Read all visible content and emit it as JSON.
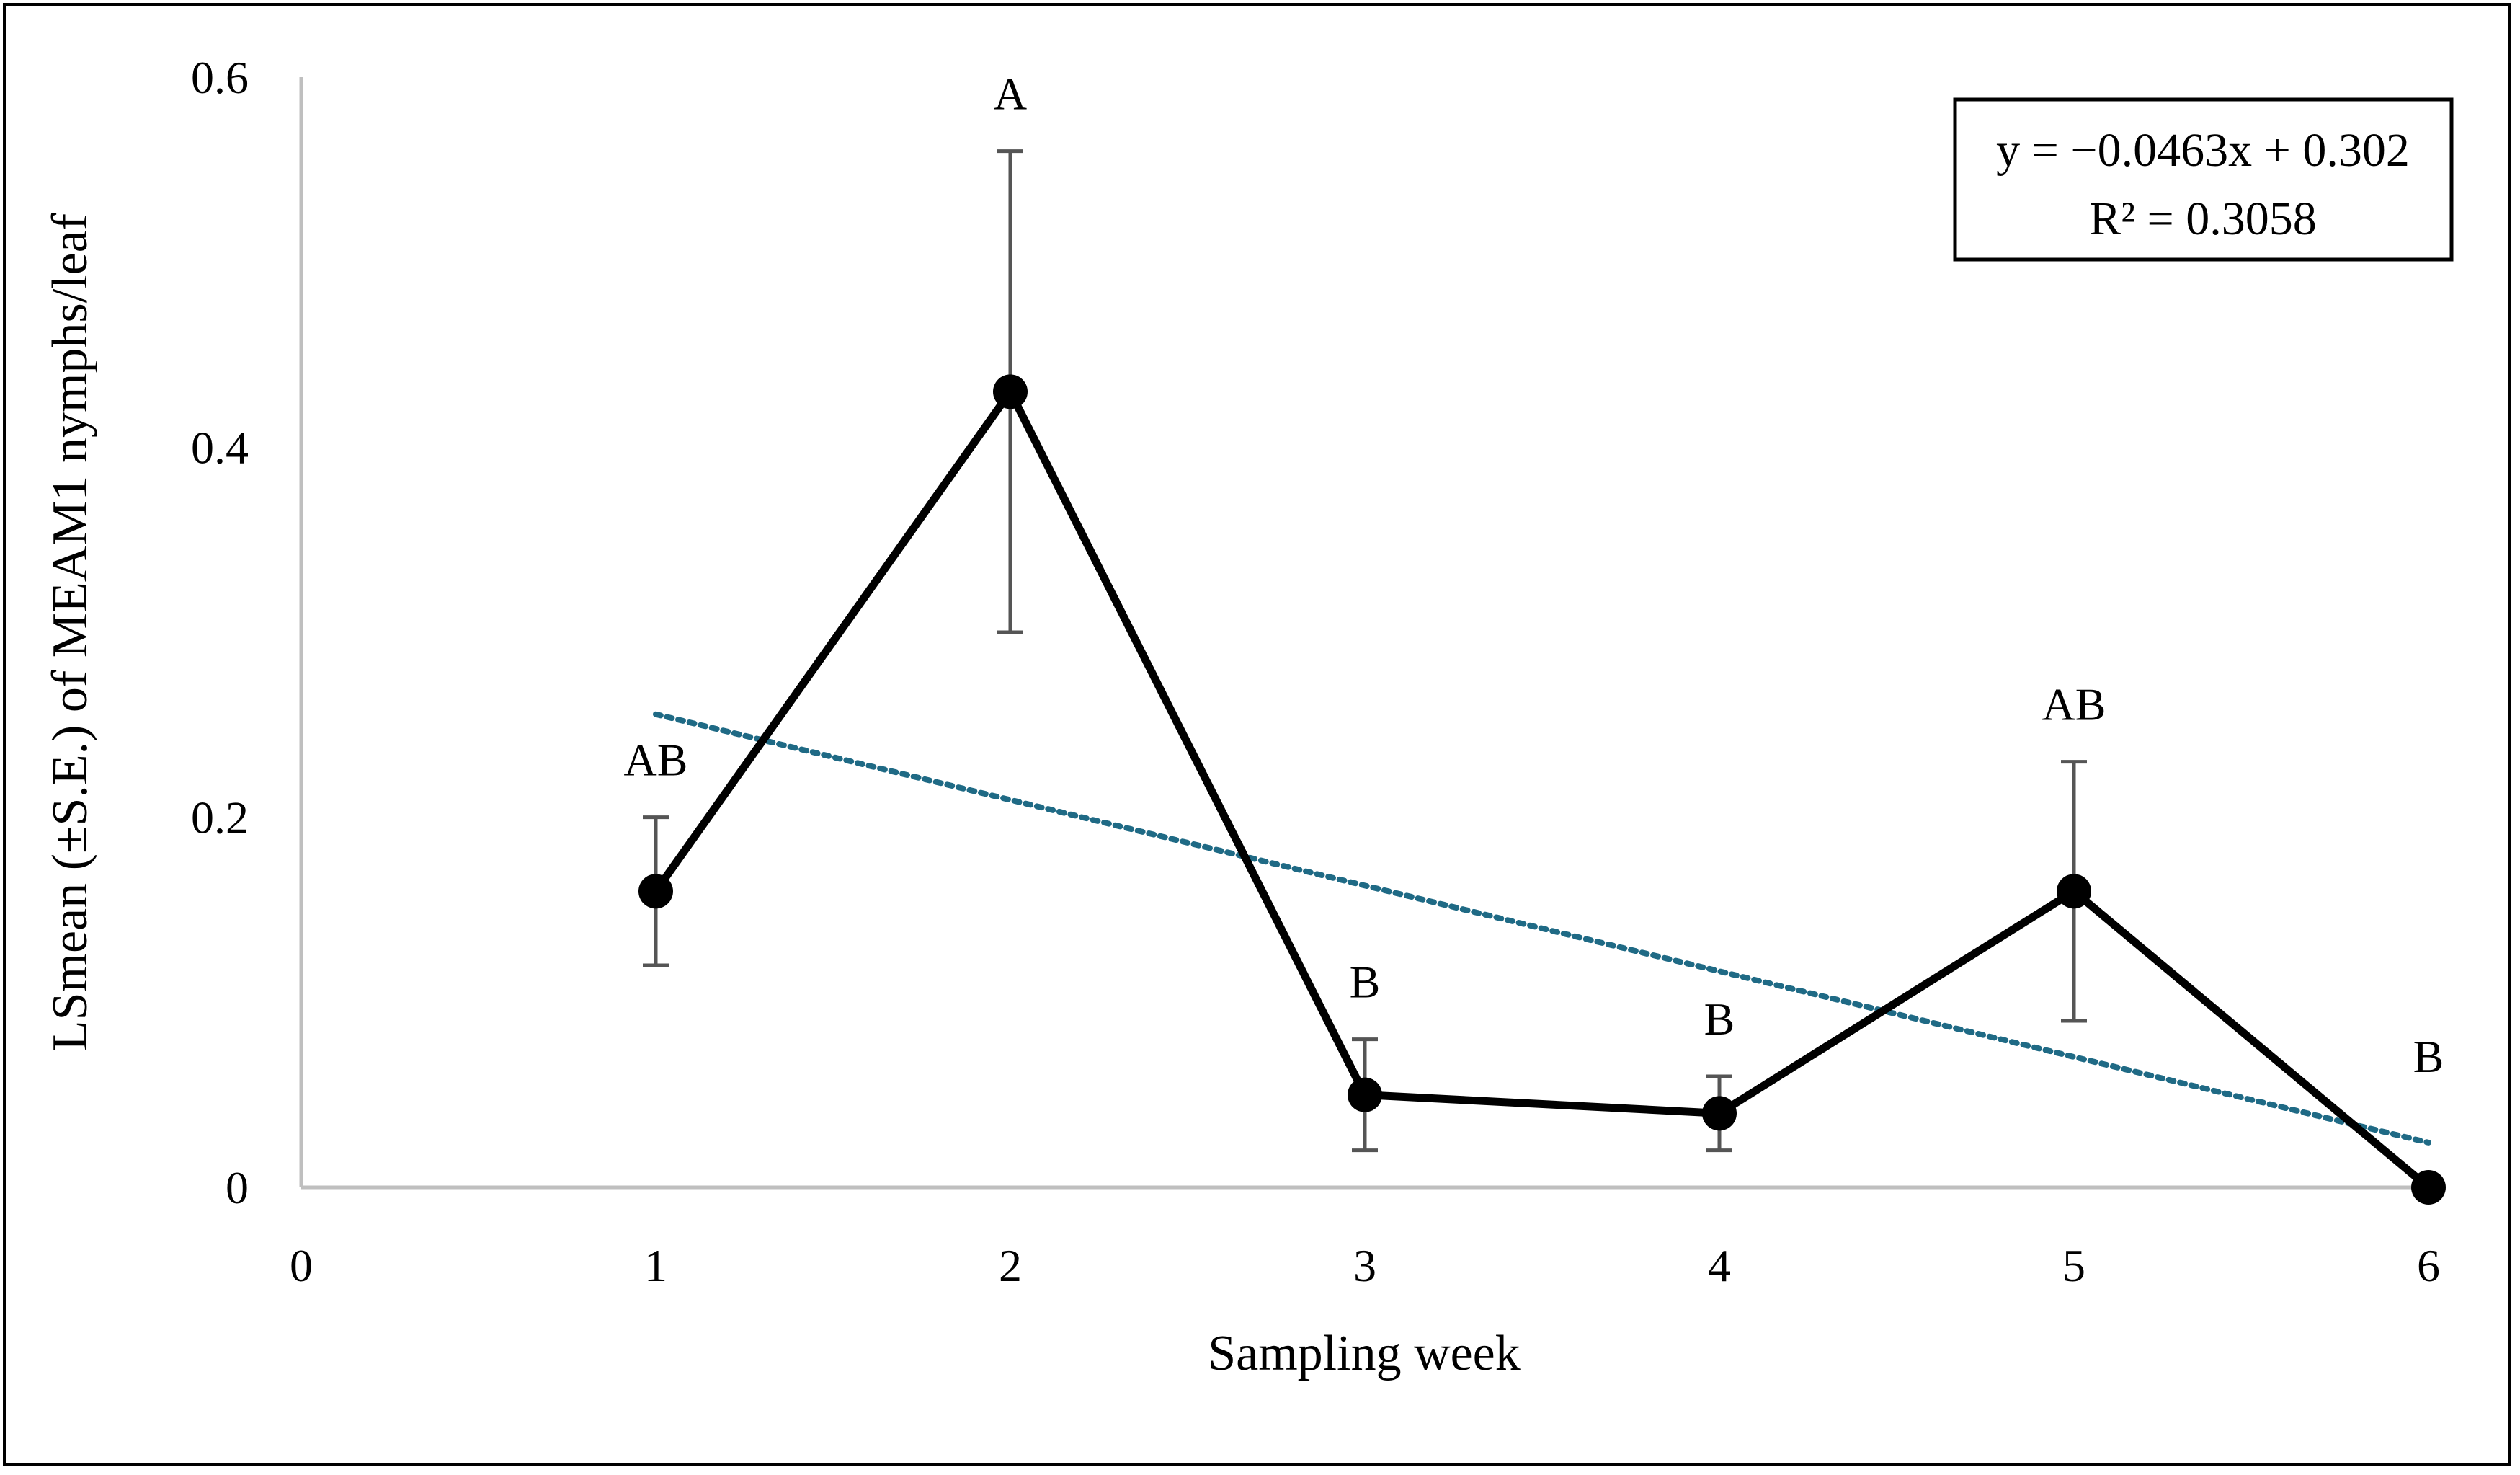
{
  "chart_data": {
    "type": "line",
    "title": "",
    "xlabel": "Sampling week",
    "ylabel": "LSmean (±S.E.) of MEAM1 nymphs/leaf",
    "xlim": [
      0,
      6
    ],
    "ylim": [
      0,
      0.6
    ],
    "x_ticks": [
      "0",
      "1",
      "2",
      "3",
      "4",
      "5",
      "6"
    ],
    "y_ticks": [
      "0",
      "0.2",
      "0.4",
      "0.6"
    ],
    "series": [
      {
        "name": "MEAM1 nymphs/leaf",
        "x": [
          1,
          2,
          3,
          4,
          5,
          6
        ],
        "values": [
          0.16,
          0.43,
          0.05,
          0.04,
          0.16,
          0.0
        ],
        "err_low": [
          0.12,
          0.3,
          0.02,
          0.02,
          0.09,
          0.0
        ],
        "err_high": [
          0.2,
          0.56,
          0.08,
          0.06,
          0.23,
          0.0
        ],
        "labels": [
          "AB",
          "A",
          "B",
          "B",
          "AB",
          "B"
        ],
        "color": "#000000"
      }
    ],
    "trendline": {
      "type": "linear",
      "slope": -0.0463,
      "intercept": 0.302,
      "x_range": [
        1,
        6
      ],
      "color": "#1f6a85",
      "equation": "y = −0.0463x + 0.302",
      "r_squared": "R² = 0.3058"
    },
    "grid": false,
    "legend": "none"
  }
}
